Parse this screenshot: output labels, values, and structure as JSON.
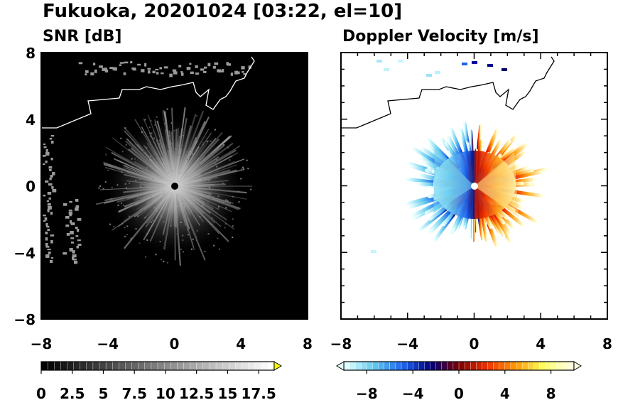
{
  "figure": {
    "title": "Fukuoka, 20201024 [03:22, el=10]"
  },
  "chart_data": [
    {
      "type": "heatmap",
      "title": "SNR [dB]",
      "xlim": [
        -8,
        8
      ],
      "ylim": [
        -8,
        8
      ],
      "x_ticks": [
        -8,
        -4,
        0,
        4,
        8
      ],
      "y_ticks": [
        8,
        4,
        0,
        -4,
        -8
      ],
      "x_tick_labels": [
        "−8",
        "−4",
        "0",
        "4",
        "8"
      ],
      "y_tick_labels": [
        "8",
        "4",
        "0",
        "−4",
        "−8"
      ],
      "background_color": "#000000",
      "colorbar": {
        "min": 0,
        "max": 18.75,
        "extend": "max",
        "colors": [
          "#000000",
          "#ffffff"
        ],
        "extend_color": "#ffff00",
        "tick_values": [
          0,
          2.5,
          5,
          7.5,
          10,
          12.5,
          15,
          17.5
        ],
        "tick_labels": [
          "0",
          "2.5",
          "5",
          "7.5",
          "10",
          "12.5",
          "15",
          "17.5"
        ]
      }
    },
    {
      "type": "heatmap",
      "title": "Doppler Velocity [m/s]",
      "xlim": [
        -8,
        8
      ],
      "ylim": [
        -8,
        8
      ],
      "x_ticks": [
        -8,
        -4,
        0,
        4,
        8
      ],
      "y_ticks": [
        8,
        4,
        0,
        -4,
        -8
      ],
      "x_tick_labels": [
        "−8",
        "−4",
        "0",
        "4",
        "8"
      ],
      "y_tick_labels": [],
      "background_color": "#ffffff",
      "colorbar": {
        "min": -10,
        "max": 10,
        "extend": "both",
        "colors": [
          "#e0ffff",
          "#60c8ee",
          "#1e64ee",
          "#00007d",
          "#7d0000",
          "#ee3200",
          "#ff9600",
          "#ffff60",
          "#ffffe0"
        ],
        "tick_values": [
          -8,
          -4,
          0,
          4,
          8
        ],
        "tick_labels": [
          "−8",
          "−4",
          "0",
          "4",
          "8"
        ]
      }
    }
  ]
}
